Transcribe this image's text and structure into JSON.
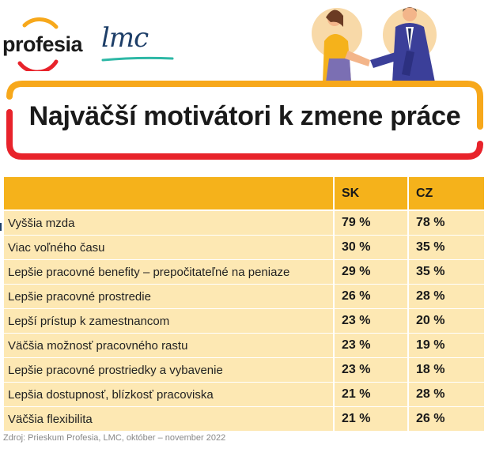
{
  "logos": {
    "profesia": "profesia",
    "lmc": "lmc"
  },
  "title": "Najväčší motivátori k zmene práce",
  "table": {
    "headers": [
      "",
      "SK",
      "CZ"
    ],
    "rows": [
      {
        "label": "Vyššia mzda",
        "sk": "79 %",
        "cz": "78 %"
      },
      {
        "label": "Viac voľného času",
        "sk": "30 %",
        "cz": "35 %"
      },
      {
        "label": "Lepšie pracovné benefity – prepočitateľné na peniaze",
        "sk": "29 %",
        "cz": "35 %"
      },
      {
        "label": "Lepšie pracovné prostredie",
        "sk": "26 %",
        "cz": "28 %"
      },
      {
        "label": "Lepší prístup k zamestnancom",
        "sk": "23 %",
        "cz": "20 %"
      },
      {
        "label": "Väčšia možnosť pracovného rastu",
        "sk": "23 %",
        "cz": "19 %"
      },
      {
        "label": "Lepšie pracovné prostriedky a vybavenie",
        "sk": "23 %",
        "cz": "18 %"
      },
      {
        "label": "Lepšia dostupnosť, blízkosť pracoviska",
        "sk": "21 %",
        "cz": "28 %"
      },
      {
        "label": "Väčšia flexibilita",
        "sk": "21 %",
        "cz": "26 %"
      }
    ]
  },
  "source": "Zdroj: Prieskum Profesia, LMC, október – november 2022",
  "colors": {
    "header_yellow": "#f5b21b",
    "row_yellow": "#fde8b3",
    "title_red": "#e8232b",
    "title_orange": "#f7a81b",
    "lmc_blue": "#1d3e68"
  }
}
